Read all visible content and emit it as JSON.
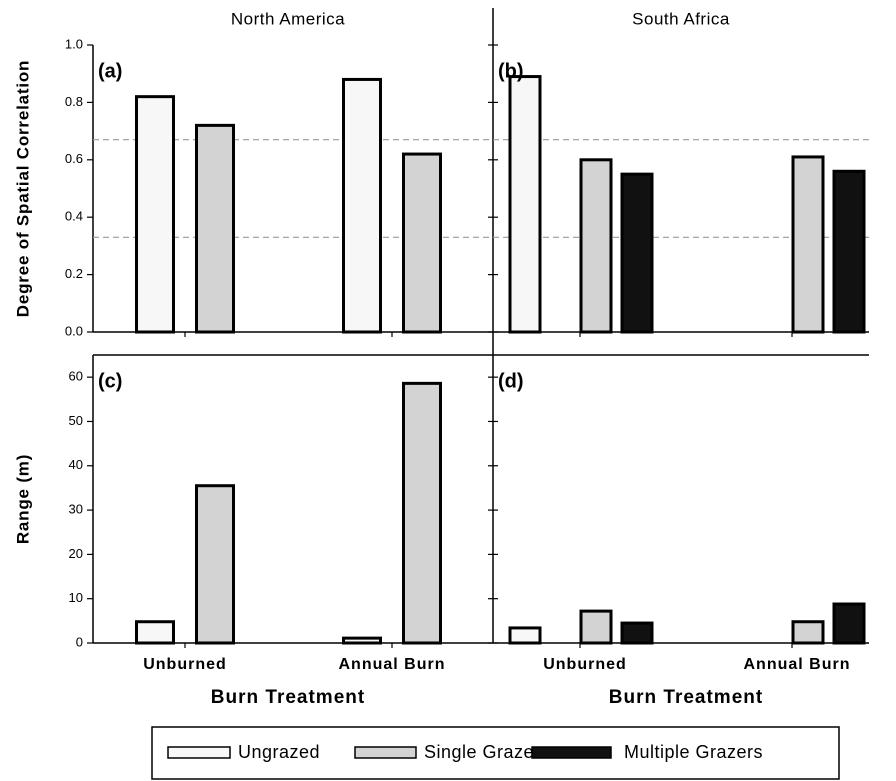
{
  "chart_data": [
    {
      "type": "bar",
      "title": "North America",
      "panel_label": "(a)",
      "ylabel": "Degree of Spatial Correlation",
      "series": [
        {
          "color": "#f7f7f7",
          "values": [
            0.82,
            0.88
          ]
        },
        {
          "color": "#d3d3d3",
          "values": [
            0.72,
            0.62
          ]
        }
      ],
      "ylim": [
        0,
        1
      ],
      "yticks": [
        {
          "value": 0,
          "label": "0.0"
        },
        0.2,
        0.4,
        0.6,
        0.8,
        {
          "value": 1,
          "label": "1.0"
        }
      ],
      "hlines": [
        0.33,
        0.67
      ]
    },
    {
      "type": "bar",
      "title": "South Africa",
      "panel_label": "(b)",
      "series": [
        {
          "color": "#f7f7f7",
          "values": [
            0.89,
            null
          ]
        },
        {
          "color": "#d3d3d3",
          "values": [
            0.6,
            0.61
          ]
        },
        {
          "color": "#111111",
          "values": [
            0.55,
            0.56
          ]
        }
      ],
      "ylim": [
        0,
        1
      ],
      "yticks": [
        0,
        0.2,
        0.4,
        0.6,
        0.8,
        1
      ],
      "hlines": [
        0.33,
        0.67
      ]
    },
    {
      "type": "bar",
      "panel_label": "(c)",
      "ylabel": "Range (m)",
      "xlabel": "Burn Treatment",
      "categories": [
        "Unburned",
        "Annual Burn"
      ],
      "series": [
        {
          "color": "#f7f7f7",
          "values": [
            4.8,
            1.1
          ]
        },
        {
          "color": "#d3d3d3",
          "values": [
            35.5,
            58.6
          ]
        }
      ],
      "ylim": [
        0,
        65
      ],
      "yticks": [
        0,
        10,
        20,
        30,
        40,
        50,
        60
      ]
    },
    {
      "type": "bar",
      "panel_label": "(d)",
      "xlabel": "Burn Treatment",
      "categories": [
        "Unburned",
        "Annual Burn"
      ],
      "series": [
        {
          "name": "Ungrazed",
          "color": "#f7f7f7",
          "values": [
            3.4,
            null
          ]
        },
        {
          "name": "Single Grazer",
          "color": "#d3d3d3",
          "values": [
            7.2,
            4.8
          ]
        },
        {
          "name": "Multiple Grazers",
          "color": "#111111",
          "values": [
            4.5,
            8.8
          ]
        }
      ],
      "ylim": [
        0,
        65
      ],
      "yticks": [
        0,
        10,
        20,
        30,
        40,
        50,
        60
      ]
    }
  ]
}
